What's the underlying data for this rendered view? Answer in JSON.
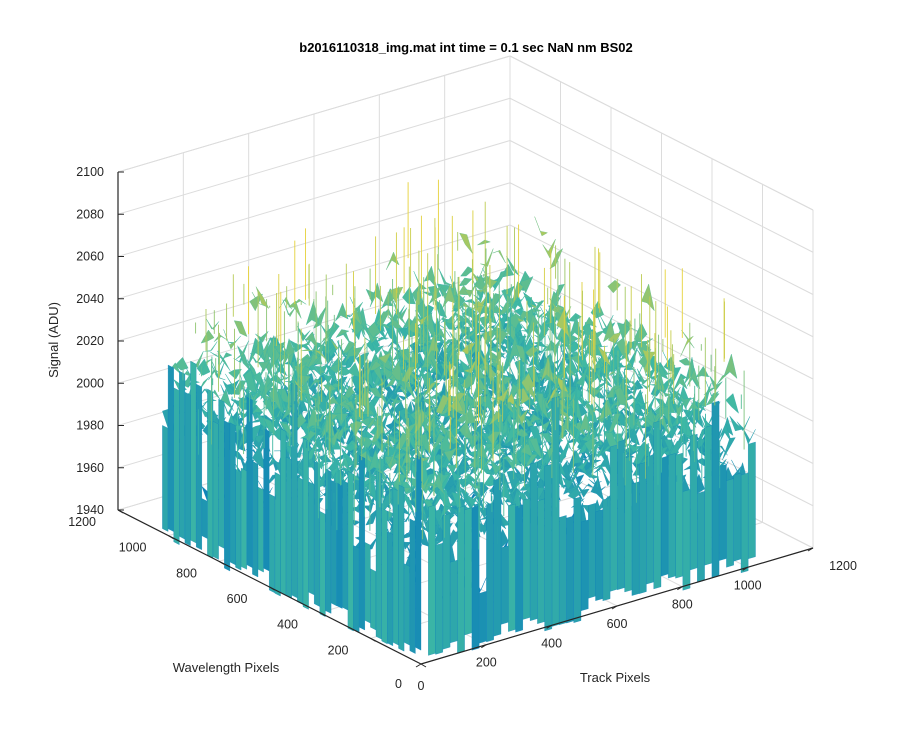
{
  "chart_data": {
    "type": "surface",
    "title": "b2016110318_img.mat int time = 0.1 sec  NaN nm BS02",
    "xlabel": "Track Pixels",
    "ylabel": "Wavelength Pixels",
    "zlabel": "Signal (ADU)",
    "xlim": [
      0,
      1200
    ],
    "ylim": [
      0,
      1200
    ],
    "zlim": [
      1940,
      2100
    ],
    "xticks": [
      "0",
      "200",
      "400",
      "600",
      "800",
      "1000",
      "1200"
    ],
    "yticks": [
      "0",
      "200",
      "400",
      "600",
      "800",
      "1000",
      "1200"
    ],
    "zticks": [
      "1940",
      "1960",
      "1980",
      "2000",
      "2020",
      "2040",
      "2060",
      "2080",
      "2100"
    ],
    "surface": {
      "x_extent": [
        0,
        1024
      ],
      "y_extent": [
        0,
        1024
      ],
      "typical_range": [
        1950,
        2070
      ],
      "min_approx": 1940,
      "max_approx": 2095,
      "colormap": "parula"
    },
    "grid": true,
    "colors": {
      "low": "#0072BD",
      "mid": "#3DB8A5",
      "high": "#E6D23A",
      "axis": "#262626",
      "grid": "#DCDCDC"
    }
  }
}
